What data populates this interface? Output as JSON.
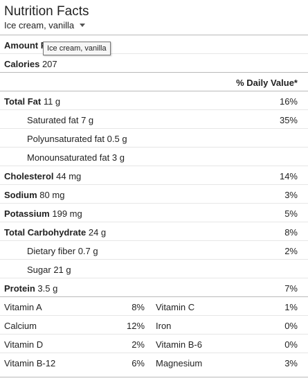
{
  "header": {
    "title": "Nutrition Facts",
    "food_selector": "Ice cream, vanilla"
  },
  "tooltip": "Ice cream, vanilla",
  "amount_label": "Amount Per",
  "calories": {
    "label": "Calories",
    "value": "207"
  },
  "dv_header": "% Daily Value*",
  "nutrients": [
    {
      "name": "Total Fat",
      "amount": "11 g",
      "dv": "16%",
      "bold": true
    },
    {
      "name": "Saturated fat",
      "amount": "7 g",
      "dv": "35%",
      "bold": false
    },
    {
      "name": "Polyunsaturated fat",
      "amount": "0.5 g",
      "dv": "",
      "bold": false
    },
    {
      "name": "Monounsaturated fat",
      "amount": "3 g",
      "dv": "",
      "bold": false
    },
    {
      "name": "Cholesterol",
      "amount": "44 mg",
      "dv": "14%",
      "bold": true
    },
    {
      "name": "Sodium",
      "amount": "80 mg",
      "dv": "3%",
      "bold": true
    },
    {
      "name": "Potassium",
      "amount": "199 mg",
      "dv": "5%",
      "bold": true
    },
    {
      "name": "Total Carbohydrate",
      "amount": "24 g",
      "dv": "8%",
      "bold": true
    },
    {
      "name": "Dietary fiber",
      "amount": "0.7 g",
      "dv": "2%",
      "bold": false
    },
    {
      "name": "Sugar",
      "amount": "21 g",
      "dv": "",
      "bold": false
    },
    {
      "name": "Protein",
      "amount": "3.5 g",
      "dv": "7%",
      "bold": true
    }
  ],
  "vitamins": [
    {
      "left_name": "Vitamin A",
      "left_dv": "8%",
      "right_name": "Vitamin C",
      "right_dv": "1%"
    },
    {
      "left_name": "Calcium",
      "left_dv": "12%",
      "right_name": "Iron",
      "right_dv": "0%"
    },
    {
      "left_name": "Vitamin D",
      "left_dv": "2%",
      "right_name": "Vitamin B-6",
      "right_dv": "0%"
    },
    {
      "left_name": "Vitamin B-12",
      "left_dv": "6%",
      "right_name": "Magnesium",
      "right_dv": "3%"
    }
  ]
}
